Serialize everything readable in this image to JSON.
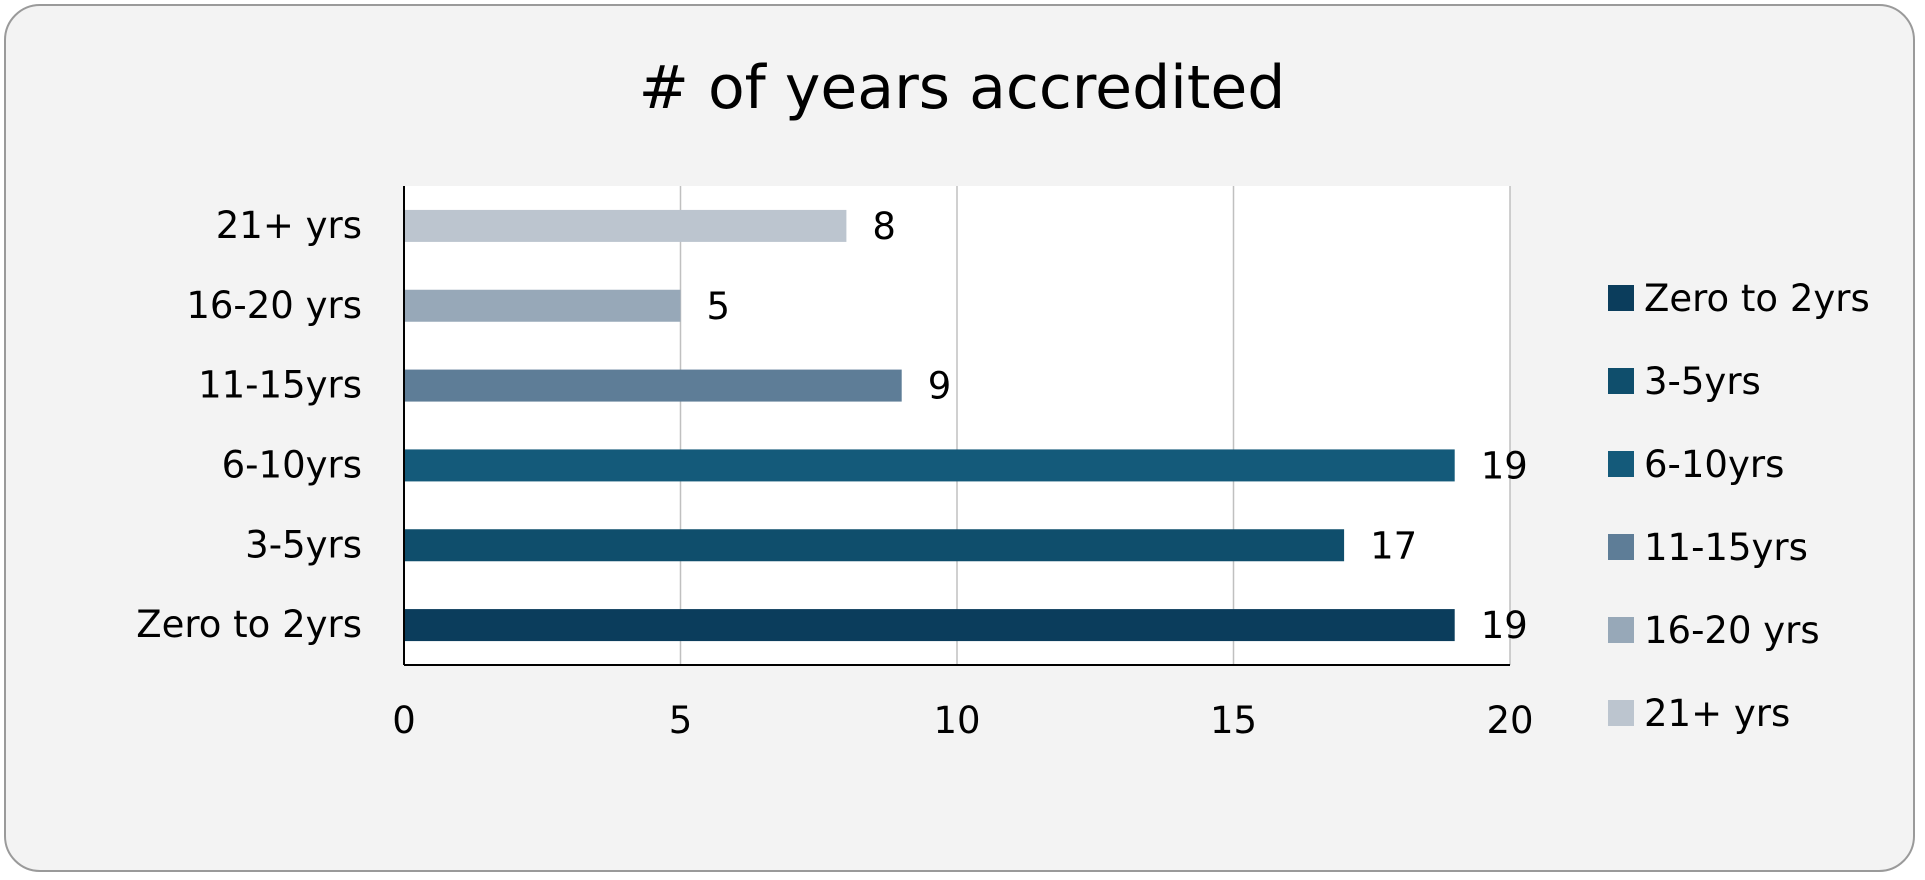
{
  "chart_data": {
    "type": "bar",
    "orientation": "horizontal",
    "title": "# of years accredited",
    "categories": [
      "Zero to 2yrs",
      "3-5yrs",
      "6-10yrs",
      "11-15yrs",
      "16-20 yrs",
      "21+ yrs"
    ],
    "values": [
      19,
      17,
      19,
      9,
      5,
      8
    ],
    "colors": [
      "#0b3d5c",
      "#0f4e6c",
      "#145a7a",
      "#5e7d97",
      "#97a8b8",
      "#bcc5cf"
    ],
    "xlim": [
      0,
      20
    ],
    "xticks": [
      0,
      5,
      10,
      15,
      20
    ],
    "grid": true,
    "legend": {
      "placement": "right",
      "entries": [
        "Zero to 2yrs",
        "3-5yrs",
        "6-10yrs",
        "11-15yrs",
        "16-20 yrs",
        "21+ yrs"
      ]
    }
  }
}
